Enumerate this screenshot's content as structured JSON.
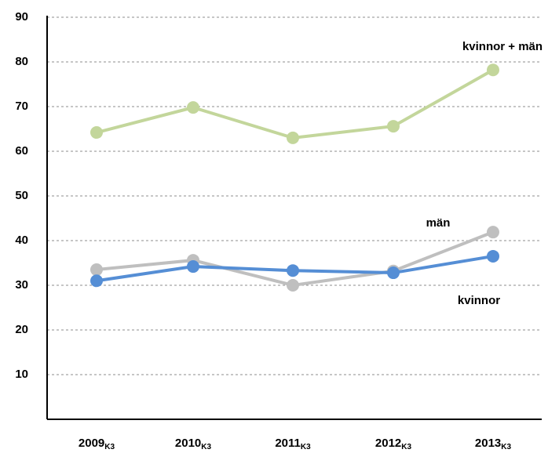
{
  "chart_data": {
    "type": "line",
    "categories": [
      "2009",
      "2010",
      "2011",
      "2012",
      "2013"
    ],
    "category_subscripts": [
      "K3",
      "K3",
      "K3",
      "K3",
      "K3"
    ],
    "series": [
      {
        "name": "kvinnor + män",
        "color": "#c3d69b",
        "values": [
          64.2,
          69.8,
          63.0,
          65.6,
          78.2
        ]
      },
      {
        "name": "män",
        "color": "#bfbfbf",
        "values": [
          33.5,
          35.6,
          30.0,
          33.2,
          41.9
        ]
      },
      {
        "name": "kvinnor",
        "color": "#558ed5",
        "values": [
          31.0,
          34.2,
          33.3,
          32.8,
          36.5
        ]
      }
    ],
    "ylim": [
      0,
      90
    ],
    "yticks": [
      10,
      20,
      30,
      40,
      50,
      60,
      70,
      80,
      90
    ],
    "grid": true
  }
}
